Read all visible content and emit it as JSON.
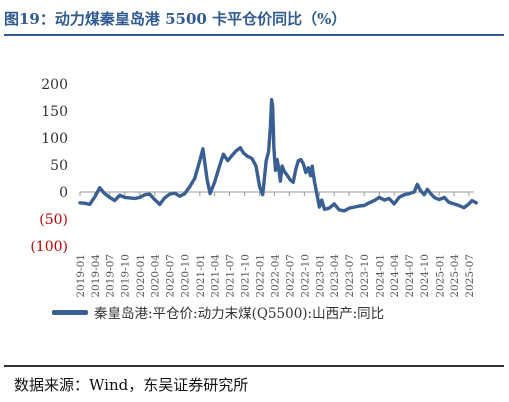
{
  "figure": {
    "title": "图19：动力煤秦皇岛港 5500 卡平仓价同比（%）",
    "source": "数据来源：Wind，东吴证券研究所"
  },
  "colors": {
    "title": "#2f5b92",
    "line": "#3a5f93",
    "negative_tick": "#c00000",
    "axis_text": "#333333"
  },
  "chart_data": {
    "type": "line",
    "title": "",
    "xlabel": "",
    "ylabel": "",
    "grid": false,
    "legend_position": "bottom",
    "ylim": [
      -100,
      200
    ],
    "yticks": [
      {
        "value": 200,
        "label": "200"
      },
      {
        "value": 150,
        "label": "150"
      },
      {
        "value": 100,
        "label": "100"
      },
      {
        "value": 50,
        "label": "50"
      },
      {
        "value": 0,
        "label": "0"
      },
      {
        "value": -50,
        "label": "(50)"
      },
      {
        "value": -100,
        "label": "(100)"
      }
    ],
    "xlim": [
      "2019-01",
      "2025-08"
    ],
    "xtick_labels": [
      "2019-01",
      "2019-04",
      "2019-07",
      "2019-10",
      "2020-01",
      "2020-04",
      "2020-07",
      "2020-10",
      "2021-01",
      "2021-04",
      "2021-07",
      "2021-10",
      "2022-01",
      "2022-04",
      "2022-07",
      "2022-10",
      "2023-01",
      "2023-04",
      "2023-07",
      "2023-10",
      "2024-01",
      "2024-04",
      "2024-07",
      "2024-10",
      "2025-01",
      "2025-04",
      "2025-07"
    ],
    "series": [
      {
        "name": "秦皇岛港:平仓价:动力末煤(Q5500):山西产:同比",
        "points": [
          [
            "2019-01-01",
            -20
          ],
          [
            "2019-02-01",
            -21
          ],
          [
            "2019-03-01",
            -23
          ],
          [
            "2019-04-01",
            -9
          ],
          [
            "2019-05-01",
            8
          ],
          [
            "2019-06-01",
            -3
          ],
          [
            "2019-07-01",
            -10
          ],
          [
            "2019-08-01",
            -16
          ],
          [
            "2019-09-01",
            -6
          ],
          [
            "2019-10-01",
            -10
          ],
          [
            "2019-11-01",
            -11
          ],
          [
            "2019-12-01",
            -12
          ],
          [
            "2020-01-01",
            -10
          ],
          [
            "2020-02-01",
            -5
          ],
          [
            "2020-03-01",
            -4
          ],
          [
            "2020-04-01",
            -14
          ],
          [
            "2020-05-01",
            -23
          ],
          [
            "2020-06-01",
            -11
          ],
          [
            "2020-07-01",
            -4
          ],
          [
            "2020-08-01",
            -2
          ],
          [
            "2020-09-01",
            -8
          ],
          [
            "2020-10-01",
            -3
          ],
          [
            "2020-11-01",
            10
          ],
          [
            "2020-12-01",
            25
          ],
          [
            "2021-01-01",
            58
          ],
          [
            "2021-01-20",
            80
          ],
          [
            "2021-02-15",
            22
          ],
          [
            "2021-03-05",
            -3
          ],
          [
            "2021-04-01",
            18
          ],
          [
            "2021-05-01",
            48
          ],
          [
            "2021-05-25",
            70
          ],
          [
            "2021-06-20",
            58
          ],
          [
            "2021-07-15",
            67
          ],
          [
            "2021-08-10",
            76
          ],
          [
            "2021-09-05",
            82
          ],
          [
            "2021-09-25",
            72
          ],
          [
            "2021-10-20",
            66
          ],
          [
            "2021-11-15",
            62
          ],
          [
            "2021-12-10",
            48
          ],
          [
            "2022-01-01",
            10
          ],
          [
            "2022-01-20",
            -5
          ],
          [
            "2022-02-10",
            58
          ],
          [
            "2022-02-25",
            75
          ],
          [
            "2022-03-08",
            120
          ],
          [
            "2022-03-15",
            171
          ],
          [
            "2022-03-22",
            158
          ],
          [
            "2022-03-29",
            80
          ],
          [
            "2022-04-08",
            40
          ],
          [
            "2022-04-18",
            60
          ],
          [
            "2022-04-28",
            42
          ],
          [
            "2022-05-08",
            20
          ],
          [
            "2022-05-18",
            48
          ],
          [
            "2022-06-01",
            38
          ],
          [
            "2022-06-20",
            30
          ],
          [
            "2022-07-08",
            22
          ],
          [
            "2022-07-25",
            18
          ],
          [
            "2022-08-10",
            42
          ],
          [
            "2022-08-25",
            58
          ],
          [
            "2022-09-10",
            60
          ],
          [
            "2022-09-25",
            52
          ],
          [
            "2022-10-10",
            36
          ],
          [
            "2022-10-25",
            45
          ],
          [
            "2022-11-08",
            30
          ],
          [
            "2022-11-18",
            48
          ],
          [
            "2022-12-01",
            20
          ],
          [
            "2022-12-15",
            -2
          ],
          [
            "2023-01-01",
            -28
          ],
          [
            "2023-01-15",
            -15
          ],
          [
            "2023-02-01",
            -32
          ],
          [
            "2023-03-01",
            -30
          ],
          [
            "2023-04-01",
            -22
          ],
          [
            "2023-05-01",
            -33
          ],
          [
            "2023-06-01",
            -35
          ],
          [
            "2023-07-01",
            -30
          ],
          [
            "2023-08-01",
            -28
          ],
          [
            "2023-09-01",
            -26
          ],
          [
            "2023-10-01",
            -25
          ],
          [
            "2023-11-01",
            -20
          ],
          [
            "2023-12-01",
            -16
          ],
          [
            "2024-01-01",
            -10
          ],
          [
            "2024-02-01",
            -15
          ],
          [
            "2024-03-01",
            -12
          ],
          [
            "2024-04-01",
            -22
          ],
          [
            "2024-05-01",
            -10
          ],
          [
            "2024-06-01",
            -5
          ],
          [
            "2024-07-01",
            -3
          ],
          [
            "2024-08-01",
            0
          ],
          [
            "2024-08-20",
            14
          ],
          [
            "2024-09-10",
            2
          ],
          [
            "2024-10-01",
            -5
          ],
          [
            "2024-10-20",
            5
          ],
          [
            "2024-11-10",
            -3
          ],
          [
            "2024-12-01",
            -10
          ],
          [
            "2025-01-01",
            -14
          ],
          [
            "2025-02-01",
            -10
          ],
          [
            "2025-03-01",
            -19
          ],
          [
            "2025-04-01",
            -22
          ],
          [
            "2025-05-01",
            -25
          ],
          [
            "2025-06-01",
            -29
          ],
          [
            "2025-07-01",
            -22
          ],
          [
            "2025-07-20",
            -16
          ],
          [
            "2025-08-15",
            -20
          ]
        ]
      }
    ]
  }
}
